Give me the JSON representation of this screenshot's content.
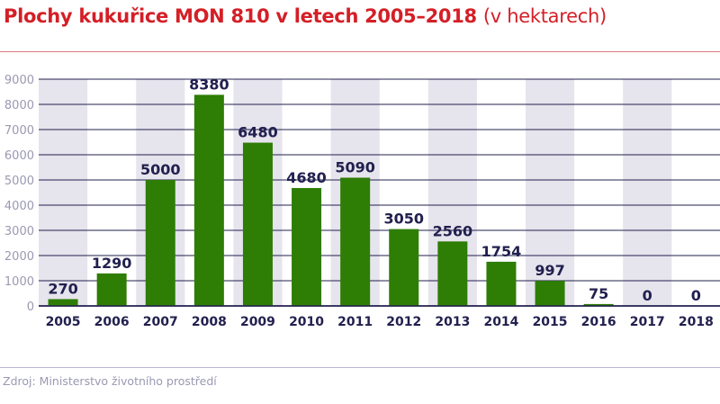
{
  "chart_data": {
    "type": "bar",
    "title": "Plochy kukuřice MON 810 v letech 2005–2018",
    "subtitle": "(v hektarech)",
    "categories": [
      "2005",
      "2006",
      "2007",
      "2008",
      "2009",
      "2010",
      "2011",
      "2012",
      "2013",
      "2014",
      "2015",
      "2016",
      "2017",
      "2018"
    ],
    "values": [
      270,
      1290,
      5000,
      8380,
      6480,
      4680,
      5090,
      3050,
      2560,
      1754,
      997,
      75,
      0,
      0
    ],
    "xlabel": "",
    "ylabel": "",
    "ylim": [
      0,
      9000
    ],
    "yticks": [
      0,
      1000,
      2000,
      3000,
      4000,
      5000,
      6000,
      7000,
      8000,
      9000
    ],
    "grid": true,
    "data_labels": true,
    "colors": {
      "bar": "#2e7d05",
      "title": "#d41f26",
      "grid": "#22204f",
      "band": "#e6e4ec",
      "label": "#22204f",
      "tick": "#9a99b2"
    }
  },
  "source": "Zdroj: Ministerstvo životního prostředí"
}
